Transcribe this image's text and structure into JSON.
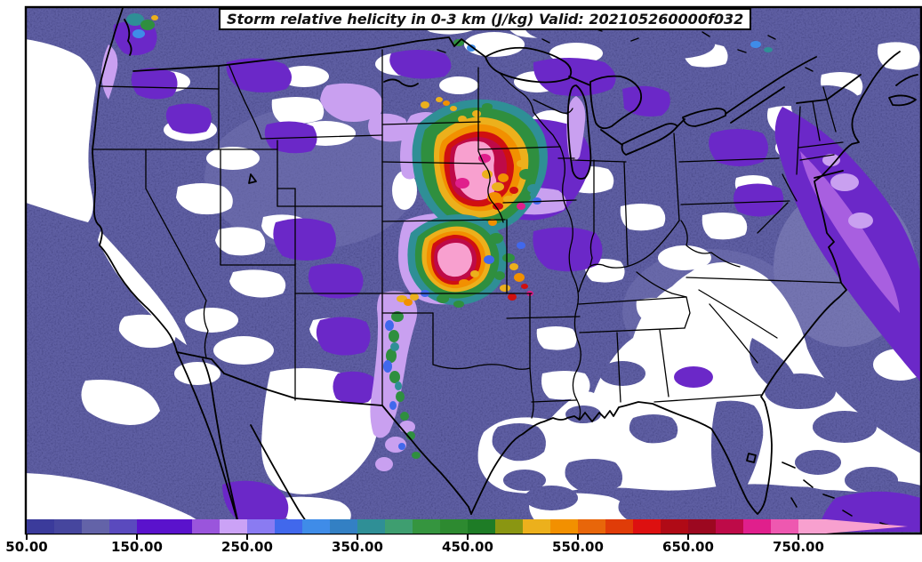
{
  "title": {
    "text": "Storm relative helicity in 0-3 km (J/kg) Valid: 202105260000f032"
  },
  "chart_data": {
    "type": "filled_contour_map",
    "title": "Storm relative helicity in 0-3 km (J/kg) Valid: 202105260000f032",
    "variable": "Storm relative helicity in 0-3 km",
    "units": "J/kg",
    "valid_stamp": "202105260000f032",
    "region": "Continental United States with state borders, Great Lakes, Mexico and Bahamas coastlines",
    "colorbar": {
      "orientation": "horizontal",
      "open_ended_high": true,
      "tick_values": [
        50,
        150,
        250,
        350,
        450,
        550,
        650,
        750
      ],
      "tick_labels": [
        "50.00",
        "150.00",
        "250.00",
        "350.00",
        "450.00",
        "550.00",
        "650.00",
        "750.00"
      ],
      "arrow_color": "#F8A0CF",
      "segments": [
        {
          "from": 50,
          "to": 75,
          "color": "#3B3B9B"
        },
        {
          "from": 75,
          "to": 100,
          "color": "#46469E"
        },
        {
          "from": 100,
          "to": 125,
          "color": "#6363A8"
        },
        {
          "from": 125,
          "to": 150,
          "color": "#5A4ABE"
        },
        {
          "from": 150,
          "to": 175,
          "color": "#5A12CC"
        },
        {
          "from": 175,
          "to": 200,
          "color": "#5A12CC"
        },
        {
          "from": 200,
          "to": 225,
          "color": "#9A55DC"
        },
        {
          "from": 225,
          "to": 250,
          "color": "#CBA2F6"
        },
        {
          "from": 250,
          "to": 275,
          "color": "#8A7BF2"
        },
        {
          "from": 275,
          "to": 300,
          "color": "#4168EC"
        },
        {
          "from": 300,
          "to": 325,
          "color": "#3F8CE8"
        },
        {
          "from": 325,
          "to": 350,
          "color": "#3380C4"
        },
        {
          "from": 350,
          "to": 375,
          "color": "#2F8F96"
        },
        {
          "from": 375,
          "to": 400,
          "color": "#3E9E70"
        },
        {
          "from": 400,
          "to": 425,
          "color": "#35953F"
        },
        {
          "from": 425,
          "to": 450,
          "color": "#2D8A30"
        },
        {
          "from": 450,
          "to": 475,
          "color": "#1E7C26"
        },
        {
          "from": 475,
          "to": 500,
          "color": "#8A9612"
        },
        {
          "from": 500,
          "to": 525,
          "color": "#ECB01C"
        },
        {
          "from": 525,
          "to": 550,
          "color": "#F29000"
        },
        {
          "from": 550,
          "to": 575,
          "color": "#E8660A"
        },
        {
          "from": 575,
          "to": 600,
          "color": "#E03C08"
        },
        {
          "from": 600,
          "to": 625,
          "color": "#DD1010"
        },
        {
          "from": 625,
          "to": 650,
          "color": "#B00A16"
        },
        {
          "from": 650,
          "to": 675,
          "color": "#9C0820"
        },
        {
          "from": 675,
          "to": 700,
          "color": "#BE0A48"
        },
        {
          "from": 700,
          "to": 725,
          "color": "#E01F8C"
        },
        {
          "from": 725,
          "to": 750,
          "color": "#EE58B0"
        },
        {
          "from": 750,
          "to": 775,
          "color": "#F8A0CF"
        }
      ]
    },
    "maxima_regions": [
      {
        "area": "Nebraska / South Dakota / Iowa border",
        "peak": "> 750"
      },
      {
        "area": "Central Kansas",
        "peak": "> 750"
      },
      {
        "area": "Oklahoma / Texas panhandle streak",
        "peak": "250-450"
      }
    ]
  },
  "palette": {
    "background_low": "#5E5EA3",
    "violet": "#6B28C8",
    "orchid": "#A85FE0",
    "lavender": "#C9A0F0",
    "blue": "#4168EC",
    "light_blue": "#3F8CE8",
    "teal": "#2F8F96",
    "sea_green": "#3E9E70",
    "green": "#2F8F3F",
    "gold": "#ECB01C",
    "orange": "#F29000",
    "red": "#D01010",
    "crimson": "#BE0A48",
    "magenta": "#E01F8C",
    "pink_core": "#F8A0CF",
    "border": "#000000"
  }
}
